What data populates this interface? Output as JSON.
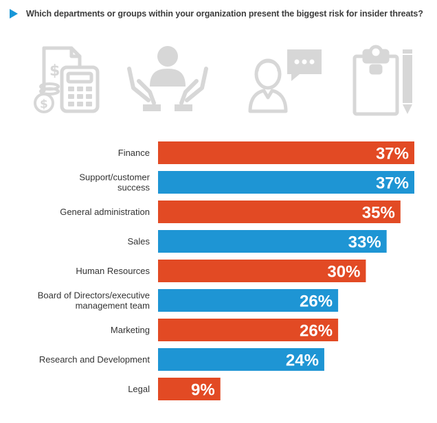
{
  "question": "Which departments or groups within your organization present the biggest risk for insider threats?",
  "icons": [
    "finance-calculator-icon",
    "support-hands-icon",
    "chat-person-icon",
    "clipboard-pencil-icon"
  ],
  "colors": {
    "orange": "#e24a24",
    "blue": "#1e95d4",
    "arrow": "#1897d8",
    "icon_gray": "#d7d7d7"
  },
  "chart_data": {
    "type": "bar",
    "orientation": "horizontal",
    "categories": [
      [
        "Finance"
      ],
      [
        "Support/customer",
        "success"
      ],
      [
        "General administration"
      ],
      [
        "Sales"
      ],
      [
        "Human Resources"
      ],
      [
        "Board of Directors/executive",
        "management team"
      ],
      [
        "Marketing"
      ],
      [
        "Research and Development"
      ],
      [
        "Legal"
      ]
    ],
    "values": [
      37,
      37,
      35,
      33,
      30,
      26,
      26,
      24,
      9
    ],
    "value_labels": [
      "37%",
      "37%",
      "35%",
      "33%",
      "30%",
      "26%",
      "26%",
      "24%",
      "9%"
    ],
    "bar_colors": [
      "#e24a24",
      "#1e95d4",
      "#e24a24",
      "#1e95d4",
      "#e24a24",
      "#1e95d4",
      "#e24a24",
      "#1e95d4",
      "#e24a24"
    ],
    "unit": "%",
    "xlim": [
      0,
      37
    ],
    "grid": false,
    "legend": false
  }
}
